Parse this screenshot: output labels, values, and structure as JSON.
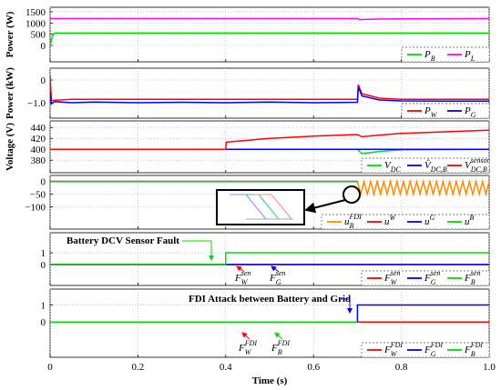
{
  "chart_data": [
    {
      "type": "line",
      "ylabel": "Power (W)",
      "xlim": [
        0,
        1
      ],
      "xticks": [
        0,
        0.2,
        0.4,
        0.6,
        0.8,
        {
          "value": 1,
          "label": "1.0"
        }
      ],
      "ylim": [
        -730,
        1700
      ],
      "yticks": [
        0,
        500,
        1000,
        1500
      ],
      "grid": true,
      "series": [
        {
          "name": "P",
          "sub": "B",
          "color": "#00dd00",
          "x": [
            0,
            0.005,
            0.01,
            1
          ],
          "values": [
            0,
            400,
            550,
            550
          ]
        },
        {
          "name": "P",
          "sub": "L",
          "color": "#ff00ff",
          "x": [
            0,
            0.7,
            0.705,
            0.75,
            1
          ],
          "values": [
            1200,
            1200,
            1150,
            1180,
            1200
          ]
        }
      ]
    },
    {
      "type": "line",
      "ylabel": "Power (kW)",
      "xlim": [
        0,
        1
      ],
      "xticks": [
        0,
        0.2,
        0.4,
        0.6,
        0.8,
        {
          "value": 1,
          "label": "1.0"
        }
      ],
      "ylim": [
        -1.68,
        0.52
      ],
      "yticks": [
        {
          "value": -1,
          "label": "−1.0"
        },
        0
      ],
      "grid": true,
      "series": [
        {
          "name": "P",
          "sub": "W",
          "color": "#ff0000",
          "x": [
            0,
            0.003,
            0.05,
            0.4,
            0.7,
            0.702,
            0.71,
            0.75,
            0.8,
            1
          ],
          "values": [
            0.2,
            -0.9,
            -0.85,
            -0.85,
            -0.85,
            -0.2,
            -0.6,
            -0.8,
            -0.85,
            -0.85
          ]
        },
        {
          "name": "P",
          "sub": "G",
          "color": "#0000ff",
          "x": [
            0,
            0.003,
            0.01,
            0.05,
            0.1,
            0.2,
            0.3,
            0.4,
            0.5,
            0.6,
            0.7,
            0.702,
            0.71,
            0.75,
            0.8,
            0.9,
            1
          ],
          "values": [
            -0.5,
            -1.05,
            -0.95,
            -1.0,
            -0.97,
            -1.0,
            -0.98,
            -1.0,
            -0.97,
            -1.0,
            -0.98,
            -0.3,
            -0.7,
            -0.88,
            -0.92,
            -0.93,
            -0.93
          ]
        }
      ]
    },
    {
      "type": "line",
      "ylabel": "Voltage (V)",
      "xlim": [
        0,
        1
      ],
      "xticks": [
        0,
        0.2,
        0.4,
        0.6,
        0.8,
        {
          "value": 1,
          "label": "1.0"
        }
      ],
      "ylim": [
        357,
        452
      ],
      "yticks": [
        380,
        400,
        420,
        440
      ],
      "grid": true,
      "series": [
        {
          "name": "V",
          "sub": "DC",
          "color": "#00dd00",
          "x": [
            0,
            0.7,
            0.71,
            0.75,
            0.8,
            1
          ],
          "values": [
            400,
            400,
            392,
            396,
            399,
            400
          ]
        },
        {
          "name": "V̂",
          "sub": "DC,B",
          "color": "#0000ff",
          "x": [
            0,
            1
          ],
          "values": [
            400,
            400
          ]
        },
        {
          "name": "V",
          "sub": "DC,B",
          "sup": "sensor",
          "color": "#ff0000",
          "x": [
            0,
            0.4,
            0.401,
            0.5,
            0.6,
            0.7,
            0.71,
            0.75,
            0.8,
            0.9,
            1
          ],
          "values": [
            400,
            400,
            413,
            420,
            424,
            427,
            423,
            426,
            429,
            432,
            435
          ]
        }
      ]
    },
    {
      "type": "line",
      "xlim": [
        0,
        1
      ],
      "xticks": [
        0,
        0.2,
        0.4,
        0.6,
        0.8,
        {
          "value": 1,
          "label": "1.0"
        }
      ],
      "ylim": [
        -188,
        24
      ],
      "yticks": [
        {
          "value": -100,
          "label": "−100"
        },
        {
          "value": -50,
          "label": "−50"
        },
        0
      ],
      "grid": true,
      "series": [
        {
          "name": "u",
          "sub": "B",
          "sup": "FDI",
          "color": "#ff8c00",
          "x": [
            0,
            0.7,
            0.7075,
            0.715,
            0.7225,
            0.73,
            0.7375,
            0.745,
            0.7525,
            0.76,
            0.7675,
            0.775,
            0.7825,
            0.79,
            0.7975,
            0.805,
            0.8125,
            0.82,
            0.8275,
            0.835,
            0.8425,
            0.85,
            0.8575,
            0.865,
            0.8725,
            0.88,
            0.8875,
            0.895,
            0.9025,
            0.91,
            0.9175,
            0.925,
            0.9325,
            0.94,
            0.9475,
            0.955,
            0.9625,
            0.97,
            0.9775,
            0.985,
            0.9925,
            1
          ],
          "values": [
            0,
            0,
            -50,
            0,
            -50,
            0,
            -50,
            0,
            -50,
            0,
            -50,
            0,
            -50,
            0,
            -50,
            0,
            -50,
            0,
            -50,
            0,
            -50,
            0,
            -50,
            0,
            -50,
            0,
            -50,
            0,
            -50,
            0,
            -50,
            0,
            -50,
            0,
            -50,
            0,
            -50,
            0,
            -50,
            0,
            -50,
            0
          ]
        },
        {
          "name": "u",
          "sup": "W",
          "color": "#ff0000",
          "x": [
            0,
            0.7
          ],
          "values": [
            0,
            0
          ]
        },
        {
          "name": "u",
          "sup": "G",
          "color": "#0000ff",
          "x": [
            0,
            0.7
          ],
          "values": [
            0,
            0
          ]
        },
        {
          "name": "u",
          "sup": "B",
          "color": "#00dd00",
          "x": [
            0,
            0.7
          ],
          "values": [
            0,
            0
          ]
        }
      ]
    },
    {
      "type": "line",
      "xlim": [
        0,
        1
      ],
      "xticks": [
        0,
        0.2,
        0.4,
        0.6,
        0.8,
        {
          "value": 1,
          "label": "1.0"
        }
      ],
      "ylim": [
        -1.77,
        2.7
      ],
      "yticks": [
        0,
        1
      ],
      "grid": true,
      "series": [
        {
          "name": "F",
          "sub": "W",
          "sup": "sen",
          "color": "#ff0000",
          "x": [
            0,
            1
          ],
          "values": [
            0,
            0
          ]
        },
        {
          "name": "F",
          "sub": "G",
          "sup": "sen",
          "color": "#0000ff",
          "x": [
            0,
            1
          ],
          "values": [
            0,
            0
          ]
        },
        {
          "name": "F",
          "sub": "B",
          "sup": "sen",
          "color": "#00dd00",
          "x": [
            0,
            0.4,
            0.4,
            1
          ],
          "values": [
            0,
            0,
            1,
            1
          ]
        }
      ],
      "annotations": [
        {
          "text": "Battery DCV Sensor Fault",
          "color": "#00dd00"
        },
        {
          "text": "F",
          "sub": "W",
          "sup": "sen",
          "color": "#ff0000"
        },
        {
          "text": "F",
          "sub": "G",
          "sup": "sen",
          "color": "#0000ff"
        }
      ]
    },
    {
      "type": "line",
      "xlabel": "Time (s)",
      "xlim": [
        0,
        1
      ],
      "xticks": [
        0,
        0.2,
        0.4,
        0.6,
        0.8,
        {
          "value": 1,
          "label": "1.0"
        }
      ],
      "ylim": [
        -2.07,
        1.93
      ],
      "yticks": [
        0,
        1
      ],
      "grid": true,
      "series": [
        {
          "name": "F",
          "sub": "W",
          "sup": "FDI",
          "color": "#ff0000",
          "x": [
            0,
            1
          ],
          "values": [
            0,
            0
          ]
        },
        {
          "name": "F",
          "sub": "G",
          "sup": "FDI",
          "color": "#0000ff",
          "x": [
            0,
            0.7,
            0.7,
            1
          ],
          "values": [
            0,
            0,
            1,
            1
          ]
        },
        {
          "name": "F",
          "sub": "B",
          "sup": "FDI",
          "color": "#00dd00",
          "x": [
            0,
            0.7
          ],
          "values": [
            0,
            0
          ]
        }
      ],
      "annotations": [
        {
          "text": "FDI Attack between Battery and Grid",
          "color": "#0000ff"
        },
        {
          "text": "F",
          "sub": "W",
          "sup": "FDI",
          "color": "#ff0000"
        },
        {
          "text": "F",
          "sub": "B",
          "sup": "FDI",
          "color": "#00dd00"
        }
      ]
    }
  ]
}
